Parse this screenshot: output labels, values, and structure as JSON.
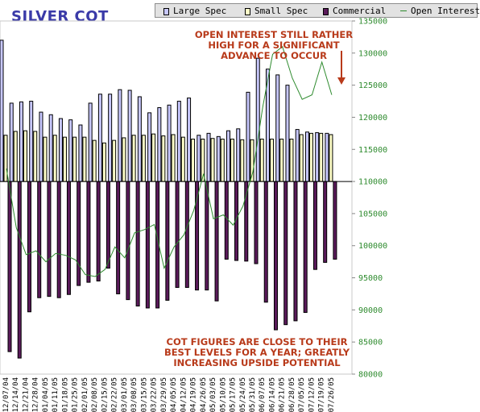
{
  "title": "SILVER COT",
  "legend": [
    {
      "label": "Large Spec",
      "swatch": "box",
      "color": "#c8c8ff"
    },
    {
      "label": "Small Spec",
      "swatch": "box",
      "color": "#ffffc8"
    },
    {
      "label": "Commercial",
      "swatch": "box",
      "color": "#5a1a5a"
    },
    {
      "label": "Open Interest",
      "swatch": "line",
      "color": "#2e8b2e"
    }
  ],
  "annotations": {
    "top": "OPEN INTEREST STILL RATHER HIGH FOR A SIGNIFICANT ADVANCE TO OCCUR",
    "bottom": "COT FIGURES ARE CLOSE TO THEIR BEST LEVELS FOR A YEAR; GREATLY INCREASING UPSIDE POTENTIAL"
  },
  "chart_data": {
    "type": "bar",
    "title": "SILVER COT",
    "grid": false,
    "legend_position": "top-right",
    "categories": [
      "12/07/04",
      "12/14/04",
      "12/21/04",
      "12/28/04",
      "01/04/05",
      "01/11/05",
      "01/18/05",
      "01/25/05",
      "02/01/05",
      "02/08/05",
      "02/15/05",
      "02/22/05",
      "03/01/05",
      "03/08/05",
      "03/15/05",
      "03/22/05",
      "03/29/05",
      "04/05/05",
      "04/12/05",
      "04/19/05",
      "04/26/05",
      "05/03/05",
      "05/10/05",
      "05/17/05",
      "05/24/05",
      "05/31/05",
      "06/07/05",
      "06/14/05",
      "06/21/05",
      "06/28/05",
      "07/05/05",
      "07/12/05",
      "07/19/05",
      "07/26/05"
    ],
    "x_tick_labels": [
      "12/14/04",
      "12/28/04",
      "01/11/05",
      "01/25/05",
      "02/08/05",
      "02/22/05",
      "03/08/05",
      "03/22/05",
      "04/05/05",
      "04/19/05",
      "05/03/05",
      "05/17/05",
      "05/31/05",
      "06/14/05",
      "06/28/05",
      "07/12/05",
      "07/26/05",
      "12/07/04",
      "12/21/04",
      "01/04/05",
      "01/18/05",
      "02/01/05",
      "02/15/05",
      "03/01/05",
      "03/15/05",
      "03/29/05",
      "04/12/05",
      "04/26/05",
      "05/10/05",
      "05/24/05",
      "06/07/05",
      "06/21/05",
      "07/05/05",
      "07/19/05"
    ],
    "series": [
      {
        "name": "Large Spec",
        "color": "#c8c8ff",
        "values": [
          132,
          122.2,
          122.4,
          122.5,
          120.8,
          120.4,
          119.8,
          119.6,
          118.8,
          122.2,
          123.6,
          123.6,
          124.3,
          124.2,
          123.2,
          120.7,
          121.5,
          121.9,
          122.5,
          123,
          117.2,
          117.5,
          117,
          117.9,
          118.2,
          123.9,
          129.2,
          127.5,
          126.6,
          125,
          118.1,
          117.7,
          117.6,
          117.5
        ]
      },
      {
        "name": "Small Spec",
        "color": "#ffffc8",
        "values": [
          117.2,
          117.8,
          117.9,
          117.8,
          116.9,
          117.2,
          116.9,
          116.9,
          116.9,
          116.4,
          116,
          116.4,
          116.8,
          117.2,
          117.2,
          117.4,
          117.1,
          117.3,
          116.9,
          116.6,
          116.6,
          116.7,
          116.6,
          116.6,
          116.5,
          116.5,
          116.6,
          116.6,
          116.6,
          116.6,
          117.3,
          117.5,
          117.5,
          117.3
        ]
      },
      {
        "name": "Commercial",
        "color": "#5a1a5a",
        "values": [
          83.5,
          82.5,
          89.7,
          91.9,
          92.1,
          91.9,
          92.4,
          93.8,
          94.3,
          94.5,
          96.5,
          92.5,
          91.6,
          90.6,
          90.3,
          90.3,
          91.5,
          93.5,
          93.5,
          93.1,
          93.1,
          91.4,
          97.9,
          97.7,
          97.6,
          97.2,
          91.2,
          86.9,
          87.7,
          88.3,
          89.6,
          96.3,
          97.4,
          97.9
        ]
      },
      {
        "name": "Open Interest",
        "color": "#2e8b2e",
        "values": [
          112,
          102.8,
          98.6,
          99.2,
          97.5,
          98.8,
          98.5,
          97.8,
          95.5,
          95.2,
          96.3,
          99.8,
          98.1,
          102,
          102.5,
          103.3,
          96.5,
          99.8,
          101.7,
          105.5,
          111.2,
          104.2,
          104.8,
          103.2,
          106.2,
          111.5,
          121.6,
          129.8,
          131,
          126.1,
          122.8,
          123.5,
          128.6,
          123.5
        ]
      }
    ],
    "y_axis_ticks": [
      "80000",
      "85000",
      "90000",
      "95000",
      "100000",
      "105000",
      "110000",
      "115000",
      "120000",
      "125000",
      "130000",
      "135000"
    ],
    "ylim": [
      80000,
      135000
    ],
    "y_units_note": "values are in thousands of contracts (e.g. 132 = 132000)",
    "baseline": 110000
  }
}
